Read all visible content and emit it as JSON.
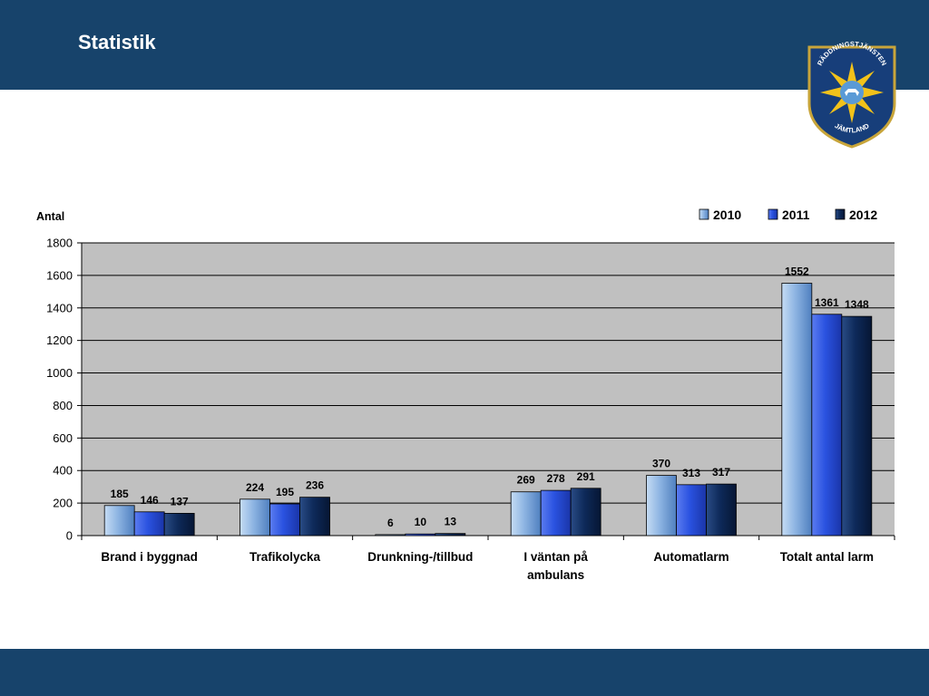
{
  "slide": {
    "title": "Statistik"
  },
  "logo": {
    "top_text": "RÄDDNINGSTJÄNSTEN",
    "bottom_text": "JÄMTLAND"
  },
  "colors": {
    "header_bar": "#17436b",
    "plot_background": "#c0c0c0",
    "series_2010": "#8db4e2",
    "series_2011": "#2a52e0",
    "series_2012": "#0e2a5a"
  },
  "chart_data": {
    "type": "bar",
    "ylabel": "Antal",
    "xlabel": "",
    "ylim": [
      0,
      1800
    ],
    "yticks": [
      0,
      200,
      400,
      600,
      800,
      1000,
      1200,
      1400,
      1600,
      1800
    ],
    "grid": true,
    "legend_position": "top-right",
    "categories": [
      [
        "Brand i byggnad"
      ],
      [
        "Trafikolycka"
      ],
      [
        "Drunkning-/tillbud"
      ],
      [
        "I väntan på",
        "ambulans"
      ],
      [
        "Automatlarm"
      ],
      [
        "Totalt antal larm"
      ]
    ],
    "series": [
      {
        "name": "2010",
        "values": [
          185,
          224,
          6,
          269,
          370,
          1552
        ]
      },
      {
        "name": "2011",
        "values": [
          146,
          195,
          10,
          278,
          313,
          1361
        ]
      },
      {
        "name": "2012",
        "values": [
          137,
          236,
          13,
          291,
          317,
          1348
        ]
      }
    ]
  }
}
